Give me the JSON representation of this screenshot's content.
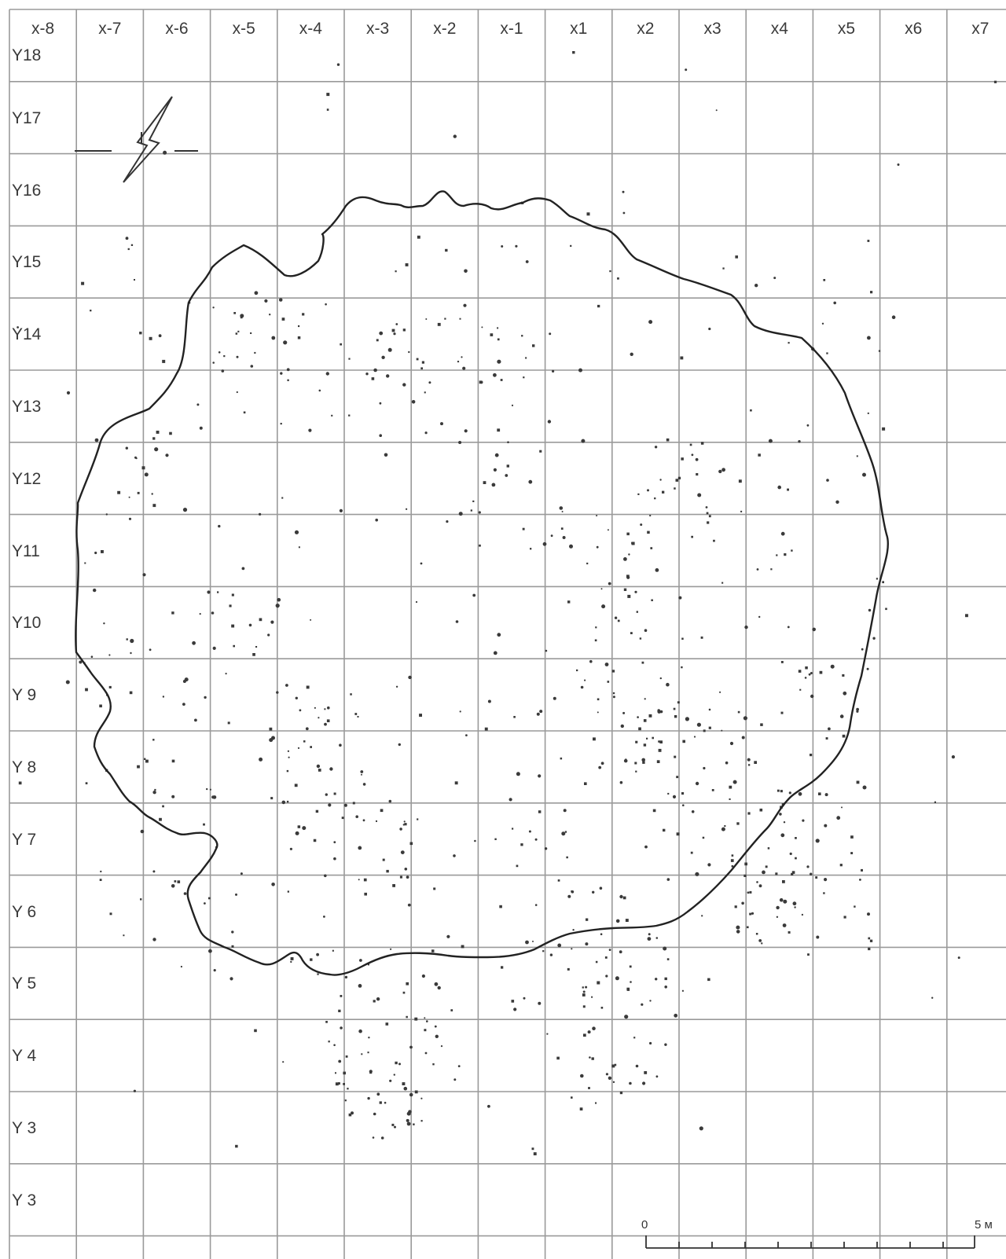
{
  "grid": {
    "columns": [
      "x-8",
      "x-7",
      "x-6",
      "x-5",
      "x-4",
      "x-3",
      "x-2",
      "x-1",
      "x1",
      "x2",
      "x3",
      "x4",
      "x5",
      "x6",
      "x7"
    ],
    "rows": [
      "Y18",
      "Y17",
      "Y16",
      "Y15",
      "Y14",
      "Y13",
      "Y12",
      "Y11",
      "Y10",
      "Y 9",
      "Y 8",
      "Y 7",
      "Y 6",
      "Y 5",
      "Y 4",
      "Y 3",
      "Y 3"
    ]
  },
  "scale_bar": {
    "start_label": "0",
    "end_label": "5 м"
  },
  "colors": {
    "grid_line": "#9a9a9a",
    "outline": "#222222",
    "finds": "#333333"
  },
  "icons": {
    "north_arrow": "north-arrow-icon"
  }
}
